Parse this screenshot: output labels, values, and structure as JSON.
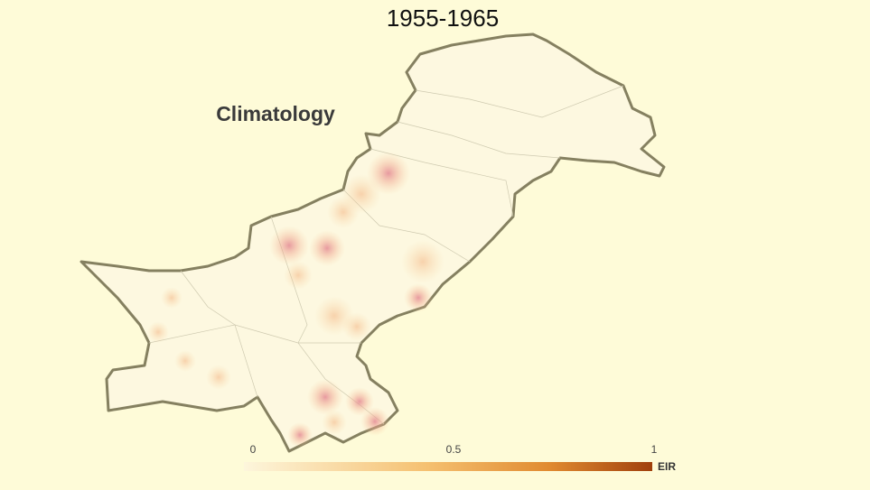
{
  "title": "1955-1965",
  "subtitle": "Climatology",
  "colorbar": {
    "range": [
      0,
      1
    ],
    "ticks": [
      0,
      0.5,
      1
    ],
    "label": "EIR"
  }
}
